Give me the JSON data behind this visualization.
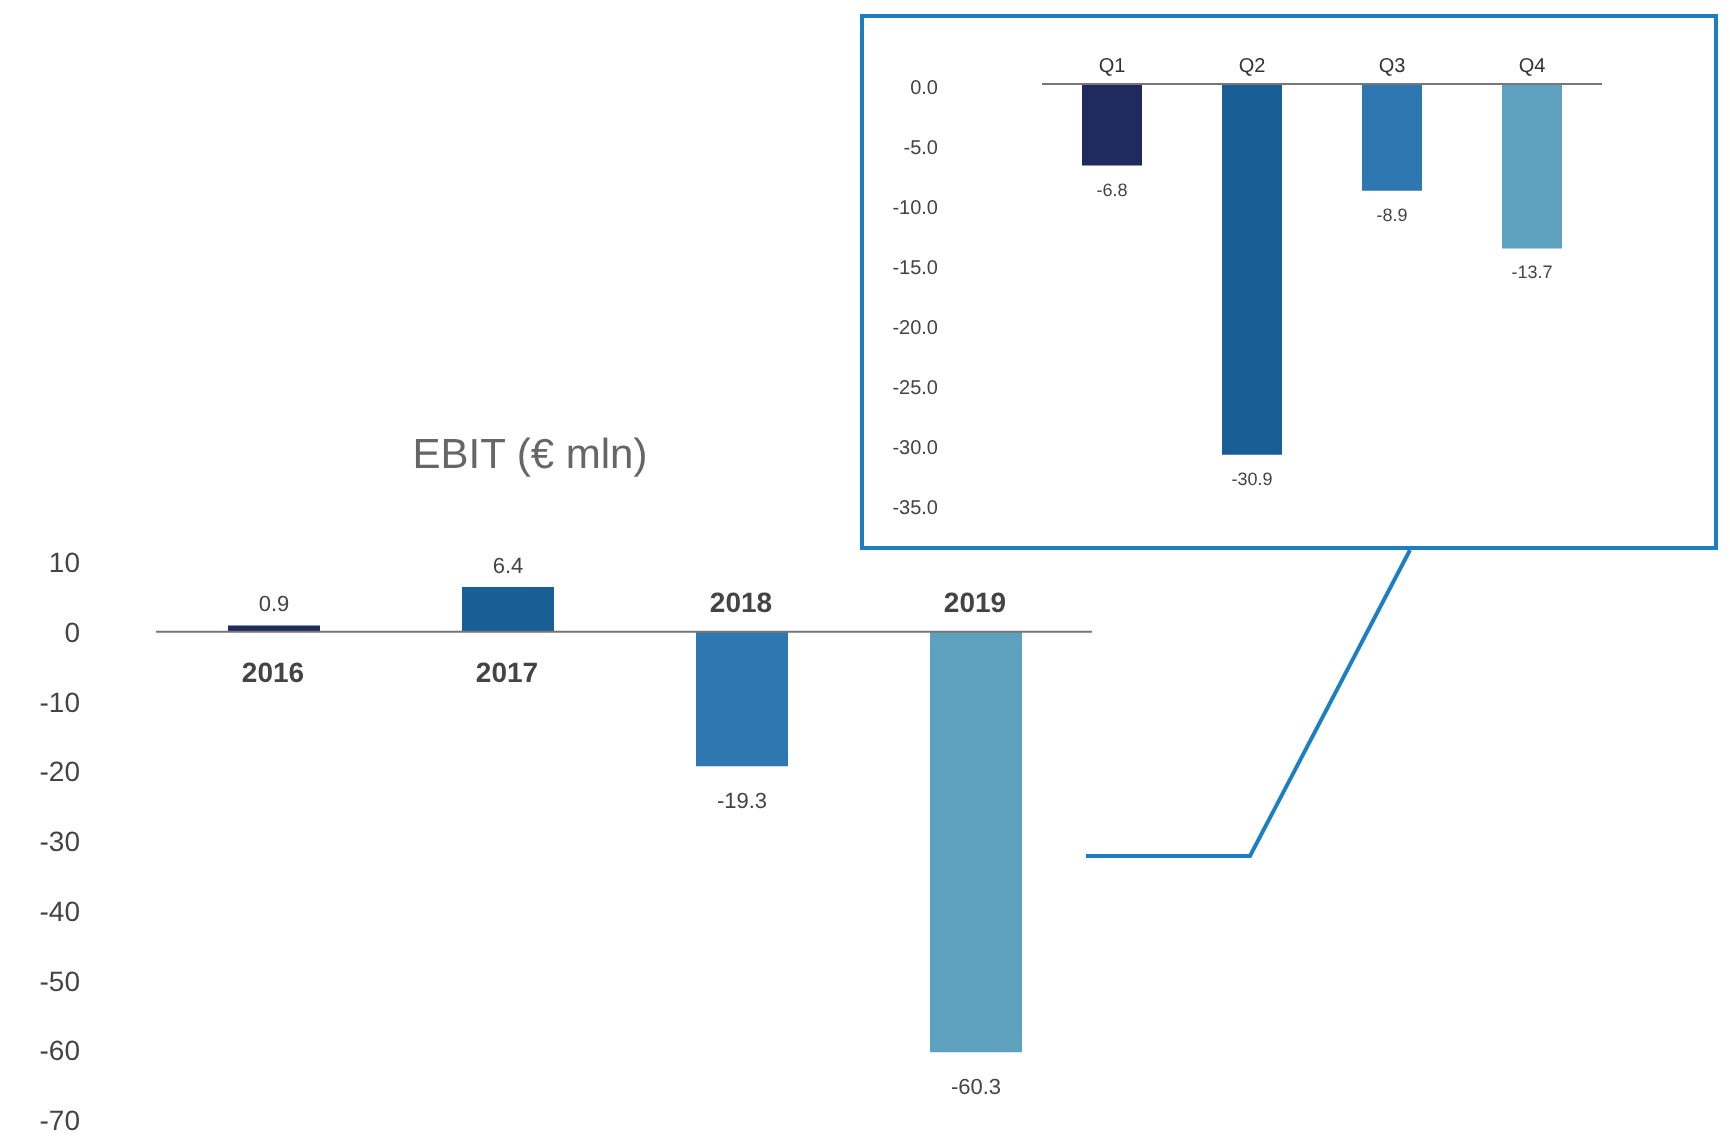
{
  "chart_data": [
    {
      "type": "bar",
      "title": "EBIT (€ mln)",
      "categories": [
        "2016",
        "2017",
        "2018",
        "2019"
      ],
      "values": [
        0.9,
        6.4,
        -19.3,
        -60.3
      ],
      "colors": [
        "#1f2a5e",
        "#1a5e96",
        "#2f77b0",
        "#5ea1bf"
      ],
      "ylim": [
        -70,
        10
      ],
      "yticks": [
        10,
        0,
        -10,
        -20,
        -30,
        -40,
        -50,
        -60,
        -70
      ],
      "data_labels": true
    },
    {
      "type": "bar",
      "categories": [
        "Q1",
        "Q2",
        "Q3",
        "Q4"
      ],
      "values": [
        -6.8,
        -30.9,
        -8.9,
        -13.7
      ],
      "colors": [
        "#1f2a5e",
        "#1a5e96",
        "#2f77b0",
        "#5ea1bf"
      ],
      "ylim": [
        -35,
        0
      ],
      "yticks": [
        {
          "value": 0,
          "label": "0.0"
        },
        {
          "value": -5,
          "label": "-5.0"
        },
        {
          "value": -10,
          "label": "-10.0"
        },
        {
          "value": -15,
          "label": "-15.0"
        },
        {
          "value": -20,
          "label": "-20.0"
        },
        {
          "value": -25,
          "label": "-25.0"
        },
        {
          "value": -30,
          "label": "-30.0"
        },
        {
          "value": -35,
          "label": "-35.0"
        }
      ],
      "data_labels": true
    }
  ]
}
